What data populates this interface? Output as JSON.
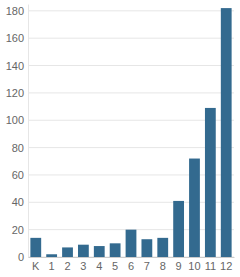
{
  "chart_data": {
    "type": "bar",
    "categories": [
      "K",
      "1",
      "2",
      "3",
      "4",
      "5",
      "6",
      "7",
      "8",
      "9",
      "10",
      "11",
      "12"
    ],
    "values": [
      14,
      2,
      7,
      9,
      8,
      10,
      20,
      13,
      14,
      41,
      72,
      109,
      182
    ],
    "color": "#336a8f",
    "ylim": [
      0,
      185
    ],
    "yticks": [
      0,
      20,
      40,
      60,
      80,
      100,
      120,
      140,
      160,
      180
    ],
    "grid": true
  }
}
